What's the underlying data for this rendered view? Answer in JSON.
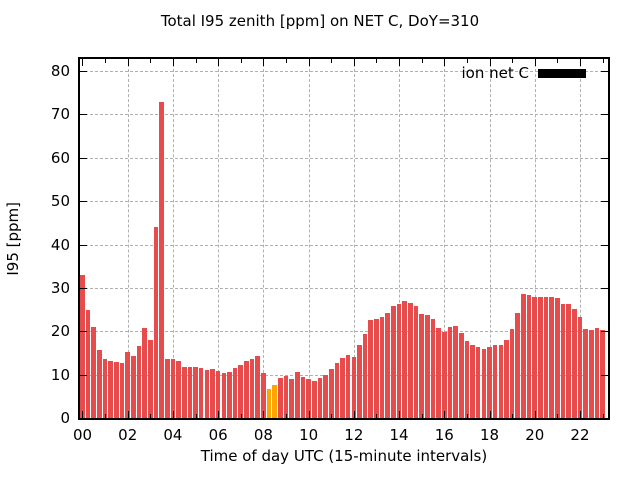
{
  "chart_data": {
    "type": "bar",
    "title": "Total I95 zenith [ppm] on NET C, DoY=310",
    "xlabel": "Time of day UTC (15-minute intervals)",
    "ylabel": "I95 [ppm]",
    "interval_minutes": 15,
    "x_tick_labels": [
      "00",
      "02",
      "04",
      "06",
      "08",
      "10",
      "12",
      "14",
      "16",
      "18",
      "20",
      "22"
    ],
    "x_tick_hours": [
      0,
      2,
      4,
      6,
      8,
      10,
      12,
      14,
      16,
      18,
      20,
      22
    ],
    "minor_x_tick_hours": [
      1,
      3,
      5,
      7,
      9,
      11,
      13,
      15,
      17,
      19,
      21,
      23
    ],
    "y_ticks": [
      0,
      10,
      20,
      30,
      40,
      50,
      60,
      70,
      80
    ],
    "ylim": [
      0,
      82.8
    ],
    "xlim_hours": [
      -0.11,
      23.24
    ],
    "grid": true,
    "legend": {
      "label": "ion net C",
      "swatch_color": "#000000",
      "location": "top-right-inside"
    },
    "colors": {
      "bar": "#e74c4c",
      "highlight": "#ffa500",
      "grid": "#b0b0b0",
      "frame": "#000000",
      "background": "#ffffff"
    },
    "series": [
      {
        "name": "ion net C",
        "times": [
          "00:00",
          "00:15",
          "00:30",
          "00:45",
          "01:00",
          "01:15",
          "01:30",
          "01:45",
          "02:00",
          "02:15",
          "02:30",
          "02:45",
          "03:00",
          "03:15",
          "03:30",
          "03:45",
          "04:00",
          "04:15",
          "04:30",
          "04:45",
          "05:00",
          "05:15",
          "05:30",
          "05:45",
          "06:00",
          "06:15",
          "06:30",
          "06:45",
          "07:00",
          "07:15",
          "07:30",
          "07:45",
          "08:00",
          "08:15",
          "08:30",
          "08:45",
          "09:00",
          "09:15",
          "09:30",
          "09:45",
          "10:00",
          "10:15",
          "10:30",
          "10:45",
          "11:00",
          "11:15",
          "11:30",
          "11:45",
          "12:00",
          "12:15",
          "12:30",
          "12:45",
          "13:00",
          "13:15",
          "13:30",
          "13:45",
          "14:00",
          "14:15",
          "14:30",
          "14:45",
          "15:00",
          "15:15",
          "15:30",
          "15:45",
          "16:00",
          "16:15",
          "16:30",
          "16:45",
          "17:00",
          "17:15",
          "17:30",
          "17:45",
          "18:00",
          "18:15",
          "18:30",
          "18:45",
          "19:00",
          "19:15",
          "19:30",
          "19:45",
          "20:00",
          "20:15",
          "20:30",
          "20:45",
          "21:00",
          "21:15",
          "21:30",
          "21:45",
          "22:00",
          "22:15",
          "22:30",
          "22:45",
          "23:00"
        ],
        "values": [
          33.0,
          25.0,
          21.0,
          15.6,
          13.7,
          13.2,
          12.9,
          12.8,
          15.2,
          14.3,
          16.5,
          20.8,
          17.9,
          44.0,
          73.0,
          13.5,
          13.5,
          13.2,
          11.7,
          11.7,
          11.8,
          11.5,
          11.0,
          11.3,
          10.8,
          10.3,
          10.5,
          11.5,
          12.3,
          13.2,
          13.5,
          14.3,
          10.4,
          6.8,
          7.6,
          9.3,
          9.8,
          9.0,
          10.5,
          9.4,
          8.9,
          8.5,
          9.2,
          10.0,
          11.4,
          12.7,
          13.8,
          14.6,
          14.1,
          16.8,
          19.4,
          22.7,
          22.9,
          23.4,
          24.2,
          25.9,
          26.4,
          26.9,
          26.5,
          25.8,
          24.0,
          23.8,
          22.8,
          20.8,
          19.8,
          20.9,
          21.3,
          19.6,
          17.7,
          16.8,
          16.3,
          16.0,
          16.4,
          16.8,
          16.9,
          18.0,
          20.6,
          24.3,
          28.6,
          28.3,
          28.0,
          27.8,
          27.8,
          27.8,
          27.7,
          26.3,
          26.3,
          25.2,
          23.2,
          20.5,
          20.2,
          20.8,
          20.4
        ],
        "highlight_indices": [
          33,
          34
        ]
      }
    ]
  }
}
